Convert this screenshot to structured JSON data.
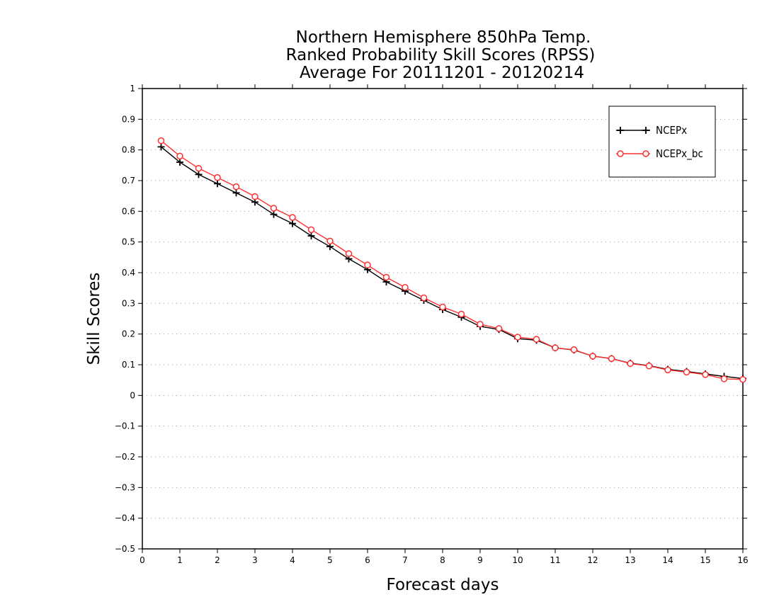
{
  "chart_data": {
    "type": "line",
    "title_lines": [
      "Northern Hemisphere 850hPa Temp.",
      "Ranked Probability Skill Scores (RPSS)",
      "Average For 20111201 - 20120214"
    ],
    "xlabel": "Forecast days",
    "ylabel": "Skill Scores",
    "xlim": [
      0,
      16
    ],
    "ylim": [
      -0.5,
      1
    ],
    "xticks": [
      "0",
      "1",
      "2",
      "3",
      "4",
      "5",
      "6",
      "7",
      "8",
      "9",
      "10",
      "11",
      "12",
      "13",
      "14",
      "15",
      "16"
    ],
    "yticks": [
      "−0.5",
      "−0.4",
      "−0.3",
      "−0.2",
      "−0.1",
      "0",
      "0.1",
      "0.2",
      "0.3",
      "0.4",
      "0.5",
      "0.6",
      "0.7",
      "0.8",
      "0.9",
      "1"
    ],
    "grid": true,
    "legend_position": "top-right",
    "x": [
      0.5,
      1,
      1.5,
      2,
      2.5,
      3,
      3.5,
      4,
      4.5,
      5,
      5.5,
      6,
      6.5,
      7,
      7.5,
      8,
      8.5,
      9,
      9.5,
      10,
      10.5,
      11,
      11.5,
      12,
      12.5,
      13,
      13.5,
      14,
      14.5,
      15,
      15.5,
      16
    ],
    "series": [
      {
        "name": "NCEPx",
        "color": "#000000",
        "marker": "plus",
        "values": [
          0.81,
          0.76,
          0.72,
          0.69,
          0.66,
          0.63,
          0.59,
          0.56,
          0.52,
          0.485,
          0.445,
          0.41,
          0.37,
          0.34,
          0.31,
          0.28,
          0.255,
          0.225,
          0.215,
          0.185,
          0.18,
          0.155,
          0.148,
          0.128,
          0.12,
          0.105,
          0.097,
          0.085,
          0.078,
          0.07,
          0.062,
          0.055
        ]
      },
      {
        "name": "NCEPx_bc",
        "color": "#ff3030",
        "marker": "circle",
        "values": [
          0.83,
          0.78,
          0.74,
          0.71,
          0.68,
          0.648,
          0.61,
          0.58,
          0.54,
          0.503,
          0.462,
          0.425,
          0.385,
          0.352,
          0.318,
          0.288,
          0.265,
          0.232,
          0.218,
          0.19,
          0.183,
          0.155,
          0.149,
          0.128,
          0.12,
          0.104,
          0.096,
          0.083,
          0.076,
          0.068,
          0.054,
          0.052
        ]
      }
    ]
  }
}
